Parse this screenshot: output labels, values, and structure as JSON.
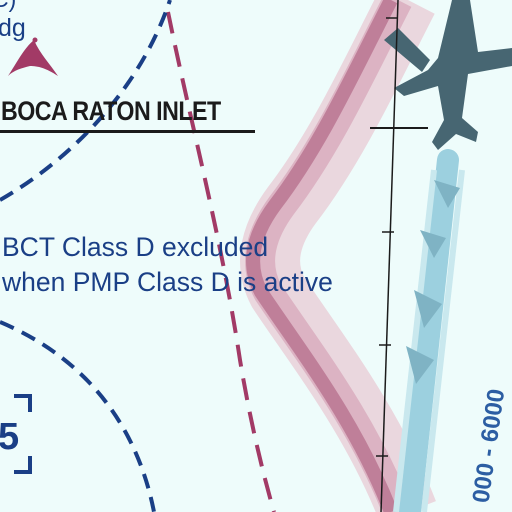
{
  "map": {
    "labels": {
      "top_fragment": "C)",
      "airspace_fragment": "dg",
      "place_name": "BOCA RATON INLET",
      "note_line_1": "BCT Class D excluded",
      "note_line_2": "when PMP Class D is active",
      "box_number": "5",
      "altitude_range": "000 - 6000"
    },
    "colors": {
      "background": "#eefcfb",
      "airspace_blue": "#1a3f86",
      "class_d_magenta": "#a23a66",
      "mode_c_band": "#d3a8b8",
      "corridor_blue": "#8fc7d9",
      "aircraft_symbol": "#476672",
      "text_dark": "#1b1b1b"
    },
    "icons": [
      "reef-tower-obstruction-icon",
      "aircraft-symbol-icon",
      "corridor-chevron-icon"
    ]
  }
}
